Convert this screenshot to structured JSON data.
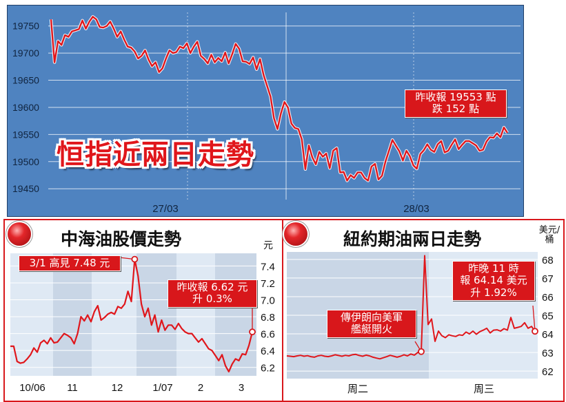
{
  "hsi": {
    "title": "恒指近兩日走勢",
    "callout": [
      "昨收報 19553 點",
      "跌 152 點"
    ],
    "chart_data": {
      "type": "line",
      "title": "恒指近兩日走勢",
      "y_ticks": [
        19750,
        19700,
        19650,
        19600,
        19550,
        19500,
        19450
      ],
      "ylim": [
        19430,
        19775
      ],
      "x_labels": [
        "27/03",
        "28/03"
      ],
      "series": [
        {
          "color": "#e0161b",
          "values": [
            19762,
            19683,
            19722,
            19715,
            19733,
            19730,
            19740,
            19742,
            19744,
            19760,
            19745,
            19758,
            19767,
            19762,
            19748,
            19747,
            19750,
            19758,
            19745,
            19730,
            19740,
            19725,
            19712,
            19710,
            19703,
            19690,
            19695,
            19705,
            19688,
            19676,
            19683,
            19665,
            19672,
            19690,
            19705,
            19700,
            19702,
            19712,
            19709,
            19718,
            19700,
            19712,
            19721,
            19695,
            19689,
            19681,
            19697,
            19683,
            19691,
            19685,
            19701,
            19681,
            19698,
            19717,
            19708,
            19685,
            19684,
            19680,
            19692,
            19670,
            19689,
            19660,
            19640,
            19620,
            19580,
            19560,
            19589,
            19610,
            19600,
            19570,
            19562,
            19560,
            19541,
            19486,
            19530,
            19508,
            19495,
            19518,
            19509,
            19515,
            19488,
            19520,
            19525,
            19480,
            19481,
            19465,
            19475,
            19470,
            19480,
            19480,
            19470,
            19465,
            19491,
            19496,
            19467,
            19474,
            19500,
            19520,
            19540,
            19529,
            19519,
            19502,
            19520,
            19510,
            19493,
            19487,
            19514,
            19521,
            19532,
            19522,
            19518,
            19532,
            19538,
            19517,
            19520,
            19531,
            19541,
            19523,
            19531,
            19538,
            19538,
            19534,
            19530,
            19520,
            19522,
            19537,
            19545,
            19544,
            19552,
            19545,
            19563,
            19553
          ]
        }
      ]
    }
  },
  "cnooc": {
    "title": "中海油股價走勢",
    "unit": "元",
    "callout_high": [
      "3/1 高見 7.48 元"
    ],
    "callout_close": [
      "昨收報 6.62 元",
      "升 0.3%"
    ],
    "chart_data": {
      "type": "line",
      "title": "中海油股價走勢",
      "y_ticks": [
        7.4,
        7.2,
        7.0,
        6.8,
        6.6,
        6.4,
        6.2
      ],
      "ylim": [
        6.1,
        7.55
      ],
      "x_labels": [
        "10/06",
        "11",
        "12",
        "1/07",
        "2",
        "3"
      ],
      "series": [
        {
          "color": "#e0161b",
          "values": [
            6.45,
            6.45,
            6.27,
            6.25,
            6.26,
            6.3,
            6.35,
            6.43,
            6.38,
            6.49,
            6.52,
            6.48,
            6.55,
            6.49,
            6.5,
            6.55,
            6.6,
            6.58,
            6.55,
            6.48,
            6.6,
            6.8,
            6.75,
            6.82,
            6.74,
            6.86,
            6.93,
            6.76,
            6.79,
            6.83,
            6.85,
            6.83,
            6.92,
            6.9,
            6.95,
            7.1,
            6.98,
            7.48,
            7.28,
            6.95,
            6.8,
            6.9,
            6.7,
            6.82,
            6.62,
            6.76,
            6.64,
            6.7,
            6.7,
            6.65,
            6.72,
            6.66,
            6.62,
            6.6,
            6.6,
            6.55,
            6.5,
            6.54,
            6.48,
            6.42,
            6.4,
            6.34,
            6.28,
            6.35,
            6.22,
            6.15,
            6.24,
            6.3,
            6.28,
            6.36,
            6.35,
            6.46,
            6.62
          ]
        }
      ]
    }
  },
  "oil": {
    "title": "紐約期油兩日走勢",
    "unit": [
      "美元/",
      "桶"
    ],
    "callout_iran": [
      "傳伊朗向美軍",
      "艦艇開火"
    ],
    "callout_close": [
      "昨晚 11 時",
      "報 64.14 美元",
      "升 1.92%"
    ],
    "chart_data": {
      "type": "line",
      "title": "紐約期油兩日走勢",
      "y_ticks": [
        68,
        67,
        66,
        65,
        64,
        63,
        62
      ],
      "ylim": [
        61.6,
        68.4
      ],
      "x_labels": [
        "周二",
        "周三"
      ],
      "series": [
        {
          "color": "#e0161b",
          "values": [
            62.82,
            62.8,
            62.78,
            62.82,
            62.85,
            62.8,
            62.83,
            62.78,
            62.75,
            62.82,
            62.85,
            62.8,
            62.78,
            62.82,
            62.88,
            62.84,
            62.8,
            62.85,
            62.82,
            62.88,
            62.9,
            62.84,
            62.8,
            62.86,
            62.82,
            62.75,
            62.7,
            62.66,
            62.72,
            62.78,
            62.85,
            62.8,
            62.75,
            62.8,
            62.88,
            62.82,
            62.92,
            62.86,
            63.0,
            63.05,
            68.2,
            64.5,
            64.8,
            63.6,
            64.15,
            63.9,
            63.8,
            63.95,
            63.9,
            63.86,
            63.95,
            63.92,
            64.1,
            64.0,
            64.15,
            63.98,
            64.12,
            64.2,
            64.3,
            64.05,
            64.2,
            64.22,
            64.15,
            64.28,
            64.2,
            64.88,
            64.3,
            64.35,
            64.4,
            64.6,
            64.3,
            64.4,
            64.14
          ]
        }
      ]
    }
  }
}
